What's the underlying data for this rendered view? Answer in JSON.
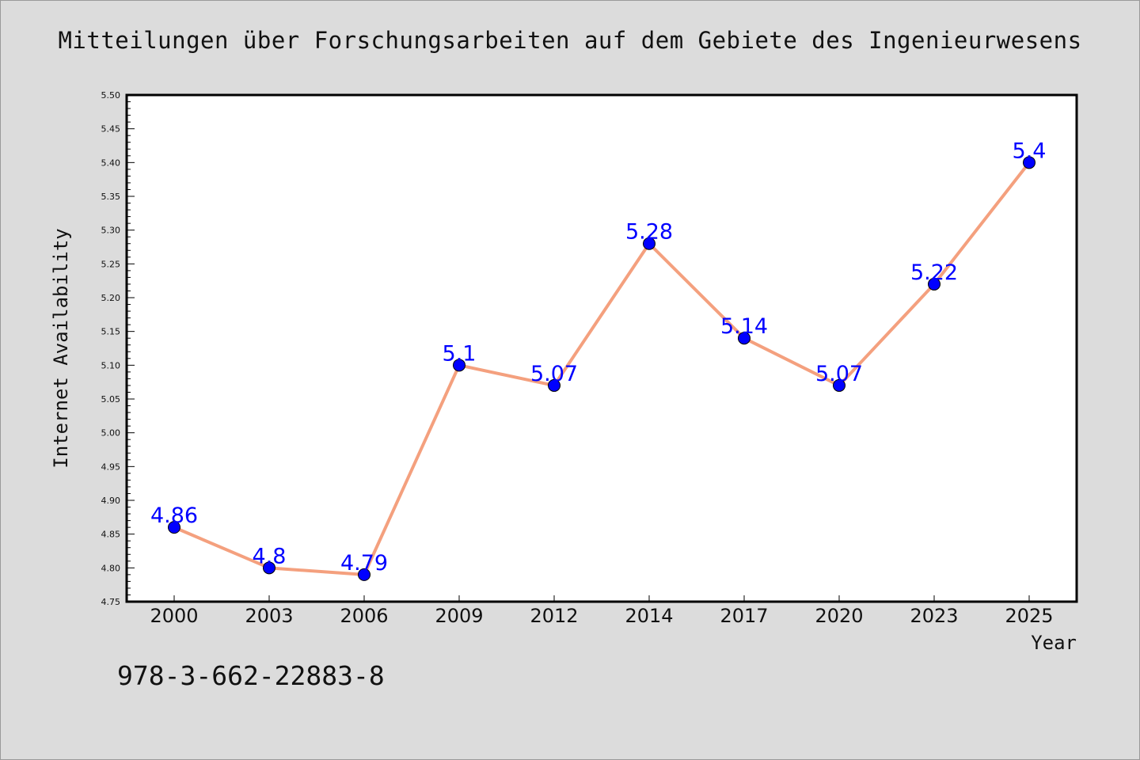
{
  "chart_data": {
    "type": "line",
    "title": "Mitteilungen über Forschungsarbeiten auf dem Gebiete des Ingenieurwesens",
    "xlabel": "Year",
    "ylabel": "Internet Availability",
    "categories": [
      "2000",
      "2003",
      "2006",
      "2009",
      "2012",
      "2014",
      "2017",
      "2020",
      "2023",
      "2025"
    ],
    "series": [
      {
        "values": [
          4.86,
          4.8,
          4.79,
          5.1,
          5.07,
          5.28,
          5.14,
          5.07,
          5.22,
          5.4
        ],
        "data_labels": [
          "4.86",
          "4.8",
          "4.79",
          "5.1",
          "5.07",
          "5.28",
          "5.14",
          "5.07",
          "5.22",
          "5.4"
        ],
        "line_color": "#f4a07e",
        "marker_color": "#0000ff"
      }
    ],
    "ylim": [
      4.75,
      5.5
    ],
    "yticks": [
      "4.75",
      "4.80",
      "4.85",
      "4.90",
      "4.95",
      "5.00",
      "5.05",
      "5.10",
      "5.15",
      "5.20",
      "5.25",
      "5.30",
      "5.35",
      "5.40",
      "5.45",
      "5.50"
    ],
    "grid": false,
    "legend": "none"
  },
  "footer": {
    "isbn": "978-3-662-22883-8"
  },
  "colors": {
    "background": "#dcdcdc",
    "plot_background": "#ffffff",
    "line": "#f4a07e",
    "marker": "#0000ff",
    "data_label": "#0000ff"
  }
}
